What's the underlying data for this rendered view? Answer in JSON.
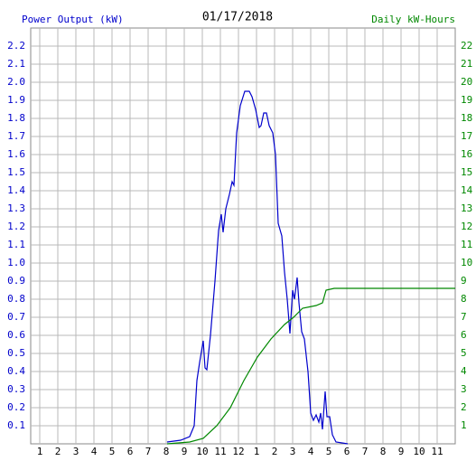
{
  "chart_data": {
    "type": "line",
    "title": "01/17/2018",
    "xlim": [
      0.5,
      24
    ],
    "ylim": [
      0,
      2.3
    ],
    "y2lim": [
      0,
      23
    ],
    "grid": true,
    "xticks": [
      1,
      2,
      3,
      4,
      5,
      6,
      7,
      8,
      9,
      10,
      11,
      12,
      {
        "value": 13,
        "label": "1"
      },
      {
        "value": 14,
        "label": "2"
      },
      {
        "value": 15,
        "label": "3"
      },
      {
        "value": 16,
        "label": "4"
      },
      {
        "value": 17,
        "label": "5"
      },
      {
        "value": 18,
        "label": "6"
      },
      {
        "value": 19,
        "label": "7"
      },
      {
        "value": 20,
        "label": "8"
      },
      {
        "value": 21,
        "label": "9"
      },
      {
        "value": 22,
        "label": "10"
      },
      {
        "value": 23,
        "label": "11"
      }
    ],
    "yticks": [
      0.1,
      0.2,
      0.3,
      0.4,
      0.5,
      0.6,
      0.7,
      0.8,
      0.9,
      {
        "value": 1,
        "label": "1.0"
      },
      1.1,
      1.2,
      1.3,
      1.4,
      1.5,
      1.6,
      1.7,
      1.8,
      1.9,
      {
        "value": 2,
        "label": "2.0"
      },
      2.1,
      2.2
    ],
    "y2ticks": [
      1,
      2,
      3,
      4,
      5,
      6,
      7,
      8,
      9,
      10,
      11,
      12,
      13,
      14,
      15,
      16,
      17,
      18,
      19,
      20,
      21,
      22
    ],
    "series": [
      {
        "name": "Power Output (kW)",
        "color": "#0000cc",
        "x": [
          8.05,
          8.8,
          9.3,
          9.55,
          9.7,
          9.85,
          10.05,
          10.15,
          10.25,
          10.45,
          10.7,
          10.9,
          11.05,
          11.15,
          11.3,
          11.5,
          11.65,
          11.75,
          11.9,
          12.1,
          12.35,
          12.6,
          12.75,
          12.95,
          13.15,
          13.25,
          13.4,
          13.55,
          13.7,
          13.9,
          14.05,
          14.2,
          14.4,
          14.55,
          14.7,
          14.85,
          15.0,
          15.1,
          15.25,
          15.35,
          15.5,
          15.65,
          15.85,
          16.0,
          16.15,
          16.3,
          16.45,
          16.55,
          16.65,
          16.8,
          16.9,
          17.05,
          17.2,
          17.4,
          18.05
        ],
        "values": [
          0.01,
          0.02,
          0.04,
          0.1,
          0.35,
          0.45,
          0.57,
          0.42,
          0.41,
          0.6,
          0.9,
          1.18,
          1.27,
          1.17,
          1.3,
          1.38,
          1.45,
          1.43,
          1.72,
          1.87,
          1.95,
          1.95,
          1.92,
          1.85,
          1.75,
          1.76,
          1.83,
          1.83,
          1.76,
          1.72,
          1.6,
          1.22,
          1.15,
          0.95,
          0.8,
          0.61,
          0.85,
          0.8,
          0.92,
          0.78,
          0.62,
          0.58,
          0.4,
          0.17,
          0.13,
          0.16,
          0.12,
          0.17,
          0.08,
          0.29,
          0.15,
          0.15,
          0.05,
          0.01,
          0.0
        ]
      },
      {
        "name": "Daily kW-Hours",
        "color": "#008800",
        "axis": "y2",
        "x": [
          8.05,
          9.3,
          10.05,
          10.8,
          11.55,
          12.3,
          13.05,
          13.8,
          14.55,
          15.05,
          15.55,
          16.3,
          16.65,
          16.85,
          17.3,
          24
        ],
        "values": [
          0,
          0.1,
          0.3,
          1.0,
          2.0,
          3.5,
          4.8,
          5.8,
          6.6,
          7.0,
          7.5,
          7.65,
          7.8,
          8.5,
          8.6,
          8.6
        ]
      }
    ]
  }
}
